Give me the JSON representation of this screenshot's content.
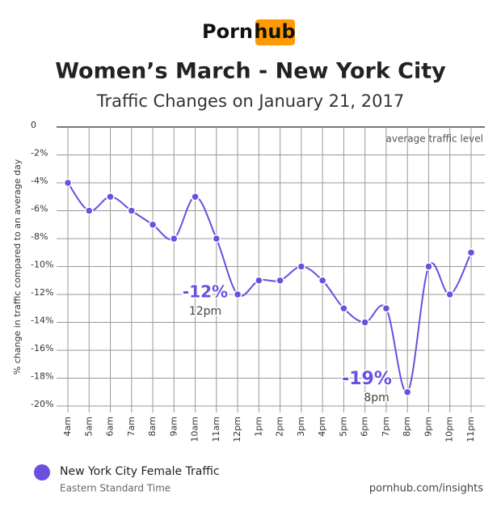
{
  "logo": {
    "left": "Porn",
    "right": "hub"
  },
  "chart_data": {
    "type": "line",
    "title": "Women’s March - New York City",
    "subtitle": "Traffic Changes on January 21, 2017",
    "y_label": "% change in traffic compared to an average day",
    "categories": [
      "4am",
      "5am",
      "6am",
      "7am",
      "8am",
      "9am",
      "10am",
      "11am",
      "12pm",
      "1pm",
      "2pm",
      "3pm",
      "4pm",
      "5pm",
      "6pm",
      "7pm",
      "8pm",
      "9pm",
      "10pm",
      "11pm"
    ],
    "series": [
      {
        "name": "New York City Female Traffic",
        "color": "#6a4fe0",
        "values": [
          -4,
          -6,
          -5,
          -6,
          -7,
          -8,
          -5,
          -8,
          -12,
          -11,
          -11,
          -10,
          -11,
          -13,
          -14,
          -13,
          -19,
          -10,
          -12,
          -9
        ]
      }
    ],
    "ylim": [
      0,
      -20
    ],
    "yticks": [
      0,
      {
        "value": -2,
        "label": "-2%"
      },
      {
        "value": -4,
        "label": "-4%"
      },
      {
        "value": -6,
        "label": "-6%"
      },
      {
        "value": -8,
        "label": "-8%"
      },
      {
        "value": -10,
        "label": "-10%"
      },
      {
        "value": -12,
        "label": "-12%"
      },
      {
        "value": -14,
        "label": "-14%"
      },
      {
        "value": -16,
        "label": "-16%"
      },
      {
        "value": -18,
        "label": "-18%"
      },
      {
        "value": -20,
        "label": "-20%"
      }
    ],
    "grid": true,
    "annotations": [
      "average traffic level",
      "-12%",
      "12pm",
      "-19%",
      "8pm"
    ],
    "legend_note": "Eastern Standard Time",
    "source": "pornhub.com/insights"
  }
}
